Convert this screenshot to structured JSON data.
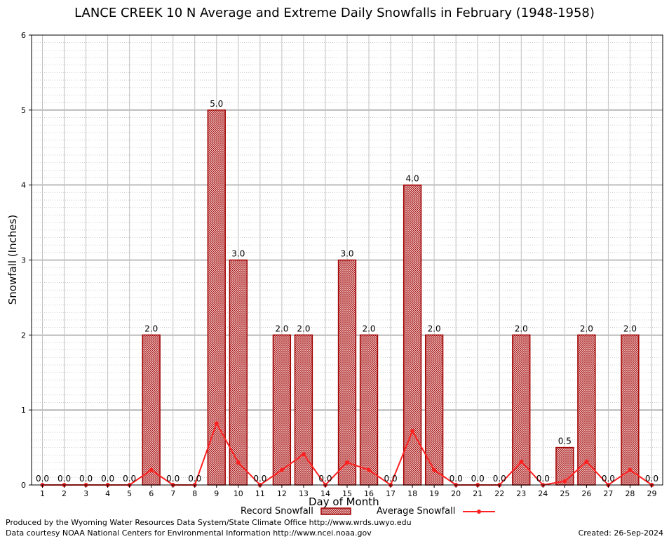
{
  "chart_data": {
    "type": "bar",
    "title": "LANCE CREEK 10 N Average and Extreme Daily Snowfalls in February (1948-1958)",
    "xlabel": "Day of Month",
    "ylabel": "Snowfall (Inches)",
    "ylim": [
      0,
      6
    ],
    "yticks": [
      "0",
      "1",
      "2",
      "3",
      "4",
      "5",
      "6"
    ],
    "grid": true,
    "categories": [
      "1",
      "2",
      "3",
      "4",
      "5",
      "6",
      "7",
      "8",
      "9",
      "10",
      "11",
      "12",
      "13",
      "14",
      "15",
      "16",
      "17",
      "18",
      "19",
      "20",
      "21",
      "22",
      "23",
      "24",
      "25",
      "26",
      "27",
      "28",
      "29"
    ],
    "series": [
      {
        "name": "Record Snowfall",
        "kind": "bar",
        "color": "#a00000",
        "values": [
          0.0,
          0.0,
          0.0,
          0.0,
          0.0,
          2.0,
          0.0,
          0.0,
          5.0,
          3.0,
          0.0,
          2.0,
          2.0,
          0.0,
          3.0,
          2.0,
          0.0,
          4.0,
          2.0,
          0.0,
          0.0,
          0.0,
          2.0,
          0.0,
          0.5,
          2.0,
          0.0,
          2.0,
          0.0
        ],
        "labels": [
          "0.0",
          "0.0",
          "0.0",
          "0.0",
          "0.0",
          "2.0",
          "0.0",
          "0.0",
          "5.0",
          "3.0",
          "0.0",
          "2.0",
          "2.0",
          "0.0",
          "3.0",
          "2.0",
          "0.0",
          "4.0",
          "2.0",
          "0.0",
          "0.0",
          "0.0",
          "2.0",
          "0.0",
          "0.5",
          "2.0",
          "0.0",
          "2.0",
          "0.0"
        ]
      },
      {
        "name": "Average Snowfall",
        "kind": "line",
        "color": "#ff2020",
        "values": [
          0,
          0,
          0,
          0,
          0,
          0.2,
          0,
          0,
          0.82,
          0.3,
          0,
          0.2,
          0.41,
          0,
          0.3,
          0.2,
          0,
          0.72,
          0.2,
          0,
          0,
          0,
          0.31,
          0,
          0.05,
          0.31,
          0,
          0.2,
          0
        ]
      }
    ],
    "legend": "bottom-center"
  },
  "footer": {
    "produced_by": "Produced by the Wyoming Water Resources Data System/State Climate Office http://www.wrds.uwyo.edu",
    "courtesy": "Data courtesy NOAA National Centers for Environmental Information http://www.ncei.noaa.gov",
    "created": "Created:  26-Sep-2024"
  }
}
